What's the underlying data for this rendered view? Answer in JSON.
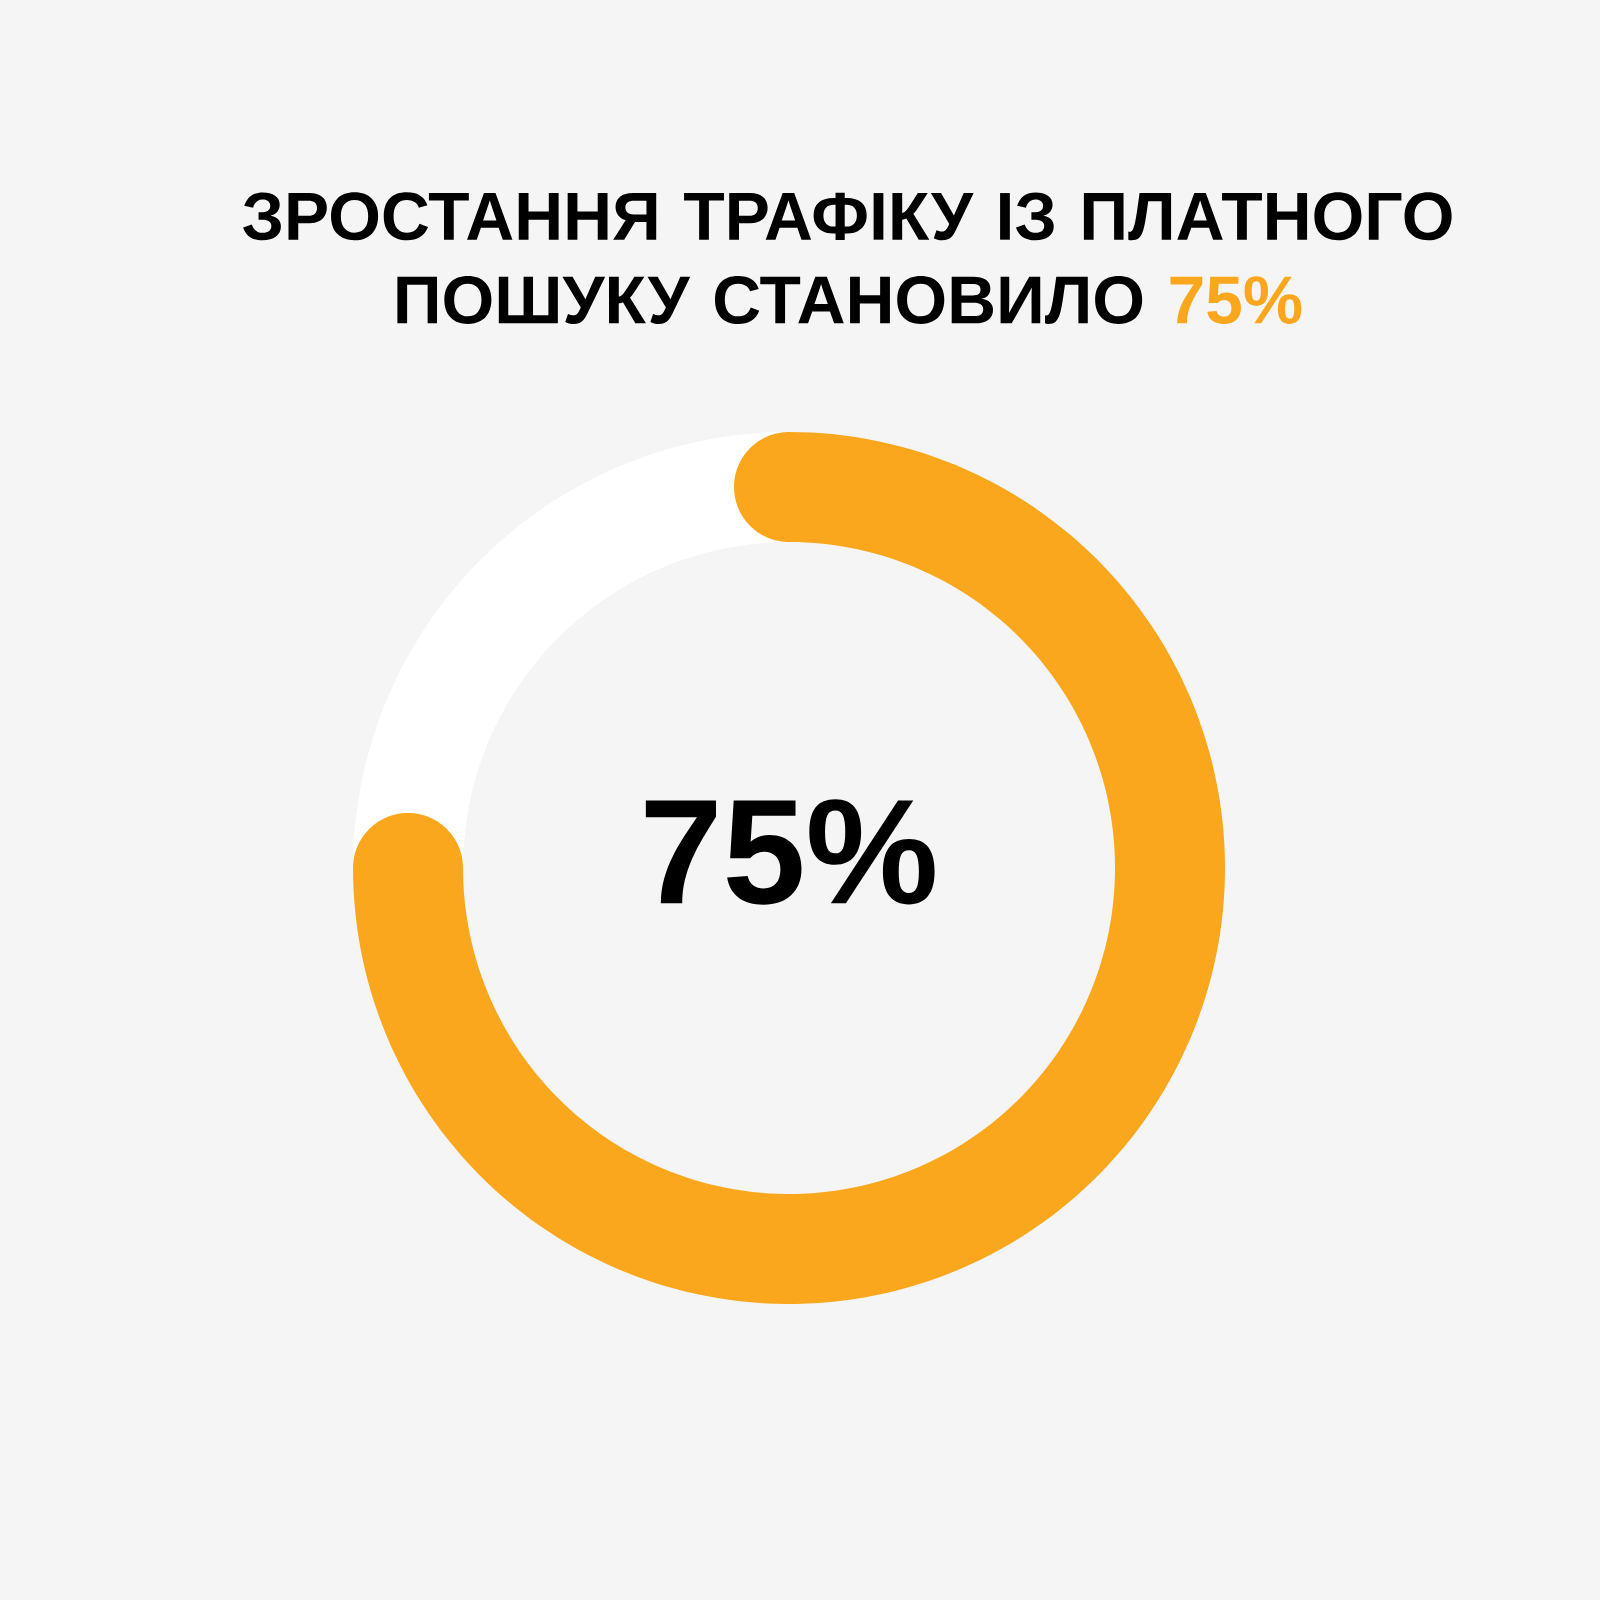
{
  "chart_data": {
    "type": "donut",
    "title": "ЗРОСТАННЯ ТРАФІКУ ІЗ ПЛАТНОГО ПОШУКУ СТАНОВИЛО **75%**",
    "categories": [
      null,
      null
    ],
    "values": [
      75,
      25
    ],
    "colors": [
      "#fba71e",
      "#ffffff"
    ],
    "value_labels": [
      "75%",
      null
    ]
  }
}
